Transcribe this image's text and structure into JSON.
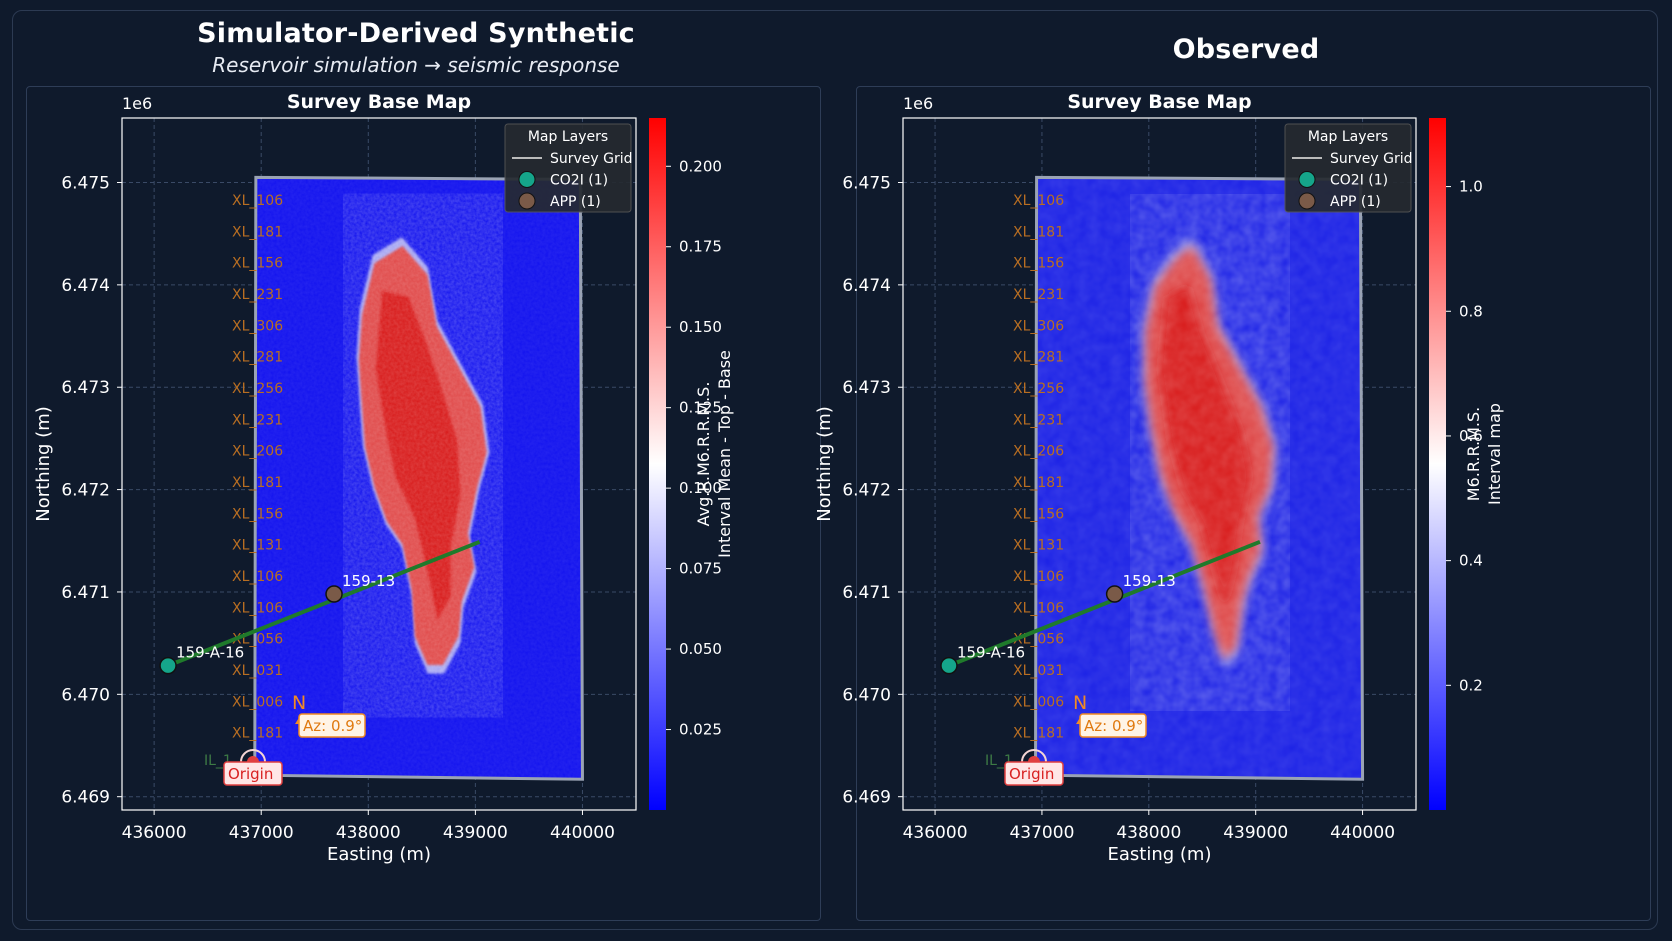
{
  "panels": [
    {
      "title": "Simulator-Derived Synthetic",
      "subtitle": "Reservoir simulation → seismic response"
    },
    {
      "title": "Observed",
      "subtitle": ""
    }
  ],
  "chart_data": [
    {
      "type": "heatmap",
      "title": "Survey Base Map",
      "xlabel": "Easting (m)",
      "ylabel": "Northing (m)",
      "y_offset_label": "1e6",
      "xlim": [
        435700,
        440500
      ],
      "ylim": [
        6.46887,
        6.47563
      ],
      "x_ticks": [
        436000,
        437000,
        438000,
        439000,
        440000
      ],
      "y_ticks": [
        6.469,
        6.47,
        6.471,
        6.472,
        6.473,
        6.474,
        6.475
      ],
      "colorbar": {
        "label_line1": "Interval Mean - Top - Base",
        "label_line2": "Avg.R.M6.R.R.M.S.",
        "range": [
          0,
          0.215
        ],
        "ticks": [
          "0.025",
          "0.050",
          "0.075",
          "0.100",
          "0.125",
          "0.150",
          "0.175",
          "0.200"
        ],
        "cmap": "bwr"
      },
      "legend": {
        "title": "Map Layers",
        "position": "top-right",
        "entries": [
          {
            "label": "Survey Grid",
            "marker": "line",
            "color": "#bbbbbb"
          },
          {
            "label": "CO2I (1)",
            "marker": "circle",
            "color": "#15a58a"
          },
          {
            "label": "APP (1)",
            "marker": "circle",
            "color": "#7a5a48"
          }
        ]
      },
      "wells": [
        {
          "name": "159-A-16",
          "type": "CO2I",
          "x": 436130,
          "y": 6.47028,
          "color": "#15a58a"
        },
        {
          "name": "159-13",
          "type": "APP",
          "x": 437680,
          "y": 6.47098,
          "color": "#7a5a48"
        }
      ],
      "trajectory": {
        "from": [
          436130,
          6.47028
        ],
        "to": [
          439040,
          6.47149
        ],
        "color": "#1f7a2b"
      },
      "survey_outline": [
        [
          436950,
          6.47505
        ],
        [
          439980,
          6.47503
        ],
        [
          440000,
          6.46917
        ],
        [
          436940,
          6.46921
        ]
      ],
      "crossline_labels": [
        "XL_106",
        "XL_181",
        "XL_156",
        "XL_231",
        "XL_306",
        "XL_281",
        "XL_256",
        "XL_231",
        "XL_206",
        "XL_181",
        "XL_156",
        "XL_131",
        "XL_106",
        "XL_106",
        "XL_056",
        "XL_031",
        "XL_006",
        "XL_181"
      ],
      "inline_label": "IL_1",
      "north_arrow": "N",
      "azimuth": "Az: 0.9°",
      "origin_label": "Origin",
      "anomaly": "red high-amplitude CO2 plume elongated SW–NE through well 159-13"
    },
    {
      "type": "heatmap",
      "title": "Survey Base Map",
      "xlabel": "Easting (m)",
      "ylabel": "Northing (m)",
      "y_offset_label": "1e6",
      "xlim": [
        435700,
        440500
      ],
      "ylim": [
        6.46887,
        6.47563
      ],
      "x_ticks": [
        436000,
        437000,
        438000,
        439000,
        440000
      ],
      "y_ticks": [
        6.469,
        6.47,
        6.471,
        6.472,
        6.473,
        6.474,
        6.475
      ],
      "colorbar": {
        "label_line1": "Interval map",
        "label_line2": "M6.R.R.M.S.",
        "range": [
          0,
          1.11
        ],
        "ticks": [
          "0.2",
          "0.4",
          "0.6",
          "0.8",
          "1.0"
        ],
        "cmap": "bwr"
      },
      "legend": {
        "title": "Map Layers",
        "position": "top-right",
        "entries": [
          {
            "label": "Survey Grid",
            "marker": "line",
            "color": "#bbbbbb"
          },
          {
            "label": "CO2I (1)",
            "marker": "circle",
            "color": "#15a58a"
          },
          {
            "label": "APP (1)",
            "marker": "circle",
            "color": "#7a5a48"
          }
        ]
      },
      "wells": [
        {
          "name": "159-A-16",
          "type": "CO2I",
          "x": 436130,
          "y": 6.47028,
          "color": "#15a58a"
        },
        {
          "name": "159-13",
          "type": "APP",
          "x": 437680,
          "y": 6.47098,
          "color": "#7a5a48"
        }
      ],
      "trajectory": {
        "from": [
          436130,
          6.47028
        ],
        "to": [
          439040,
          6.47149
        ],
        "color": "#1f7a2b"
      },
      "survey_outline": [
        [
          436950,
          6.47505
        ],
        [
          439980,
          6.47503
        ],
        [
          440000,
          6.46917
        ],
        [
          436940,
          6.46921
        ]
      ],
      "crossline_labels": [
        "XL_106",
        "XL_181",
        "XL_156",
        "XL_231",
        "XL_306",
        "XL_281",
        "XL_256",
        "XL_231",
        "XL_206",
        "XL_181",
        "XL_156",
        "XL_131",
        "XL_106",
        "XL_106",
        "XL_056",
        "XL_031",
        "XL_006",
        "XL_181"
      ],
      "inline_label": "IL_1",
      "north_arrow": "N",
      "azimuth": "Az: 0.9°",
      "origin_label": "Origin",
      "anomaly": "smoother red plume elongated SW–NE through well 159-13"
    }
  ]
}
